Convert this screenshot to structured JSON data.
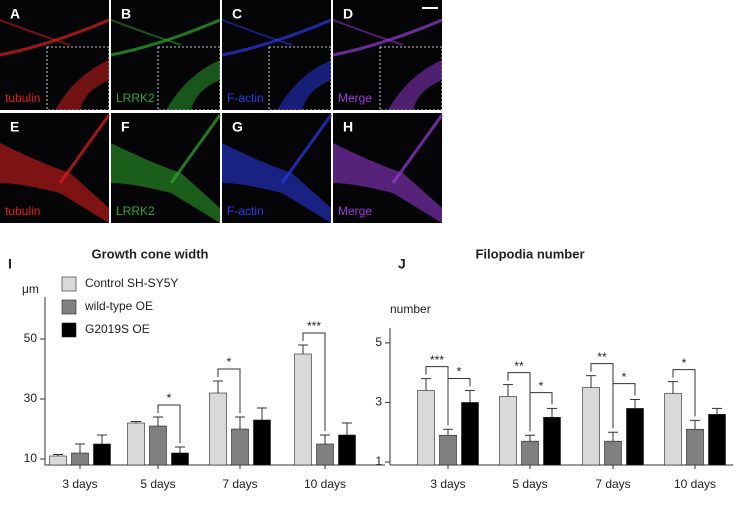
{
  "image_panels": [
    {
      "letter": "A",
      "label": "tubulin",
      "color": "#e0201e",
      "inset": true
    },
    {
      "letter": "B",
      "label": "LRRK2",
      "color": "#2ea82e",
      "inset": true
    },
    {
      "letter": "C",
      "label": "F-actin",
      "color": "#2a3ae8",
      "inset": true
    },
    {
      "letter": "D",
      "label": "Merge",
      "color": "#9a3ad8",
      "inset": true
    },
    {
      "letter": "E",
      "label": "tubulin",
      "color": "#e0201e",
      "inset": false
    },
    {
      "letter": "F",
      "label": "LRRK2",
      "color": "#2ea82e",
      "inset": false
    },
    {
      "letter": "G",
      "label": "F-actin",
      "color": "#2a3ae8",
      "inset": false
    },
    {
      "letter": "H",
      "label": "Merge",
      "color": "#9a3ad8",
      "inset": false
    }
  ],
  "chart_data": [
    {
      "type": "bar",
      "letter": "I",
      "title": "Growth cone width",
      "y_label": "μm",
      "categories": [
        "3 days",
        "5 days",
        "7 days",
        "10 days"
      ],
      "series": [
        {
          "name": "Control SH-SY5Y",
          "color": "#d9d9d9",
          "values": [
            11,
            22,
            32,
            45
          ],
          "errors": [
            0.5,
            0.5,
            4,
            3
          ]
        },
        {
          "name": "wild-type OE",
          "color": "#808080",
          "values": [
            12,
            21,
            20,
            15
          ],
          "errors": [
            3,
            3,
            4,
            3
          ]
        },
        {
          "name": "G2019S OE",
          "color": "#000000",
          "values": [
            15,
            12,
            23,
            18
          ],
          "errors": [
            3,
            2,
            4,
            4
          ]
        }
      ],
      "ylim": [
        8,
        64
      ],
      "yticks": [
        10,
        30,
        50
      ],
      "annotations": [
        {
          "text": "*",
          "category": "5 days",
          "between": [
            "wild-type OE",
            "G2019S OE"
          ]
        },
        {
          "text": "*",
          "category": "7 days",
          "between": [
            "Control SH-SY5Y",
            "wild-type OE"
          ]
        },
        {
          "text": "***",
          "category": "10 days",
          "between": [
            "Control SH-SY5Y",
            "wild-type OE"
          ]
        }
      ],
      "legend": true
    },
    {
      "type": "bar",
      "letter": "J",
      "title": "Filopodia number",
      "y_label": "number",
      "categories": [
        "3 days",
        "5 days",
        "7 days",
        "10 days"
      ],
      "series": [
        {
          "name": "Control SH-SY5Y",
          "color": "#d9d9d9",
          "values": [
            3.4,
            3.2,
            3.5,
            3.3
          ],
          "errors": [
            0.4,
            0.4,
            0.4,
            0.4
          ]
        },
        {
          "name": "wild-type OE",
          "color": "#808080",
          "values": [
            1.9,
            1.7,
            1.7,
            2.1
          ],
          "errors": [
            0.2,
            0.2,
            0.3,
            0.3
          ]
        },
        {
          "name": "G2019S OE",
          "color": "#000000",
          "values": [
            3.0,
            2.5,
            2.8,
            2.6
          ],
          "errors": [
            0.4,
            0.3,
            0.3,
            0.2
          ]
        }
      ],
      "ylim": [
        0.9,
        5.5
      ],
      "yticks": [
        1,
        3,
        5
      ],
      "annotations": [
        {
          "text": "***",
          "category": "3 days",
          "between": [
            "Control SH-SY5Y",
            "wild-type OE"
          ]
        },
        {
          "text": "*",
          "category": "3 days",
          "between": [
            "wild-type OE",
            "G2019S OE"
          ]
        },
        {
          "text": "**",
          "category": "5 days",
          "between": [
            "Control SH-SY5Y",
            "wild-type OE"
          ]
        },
        {
          "text": "*",
          "category": "5 days",
          "between": [
            "wild-type OE",
            "G2019S OE"
          ]
        },
        {
          "text": "**",
          "category": "7 days",
          "between": [
            "Control SH-SY5Y",
            "wild-type OE"
          ]
        },
        {
          "text": "*",
          "category": "7 days",
          "between": [
            "wild-type OE",
            "G2019S OE"
          ]
        },
        {
          "text": "*",
          "category": "10 days",
          "between": [
            "Control SH-SY5Y",
            "wild-type OE"
          ]
        }
      ],
      "legend": false
    }
  ]
}
